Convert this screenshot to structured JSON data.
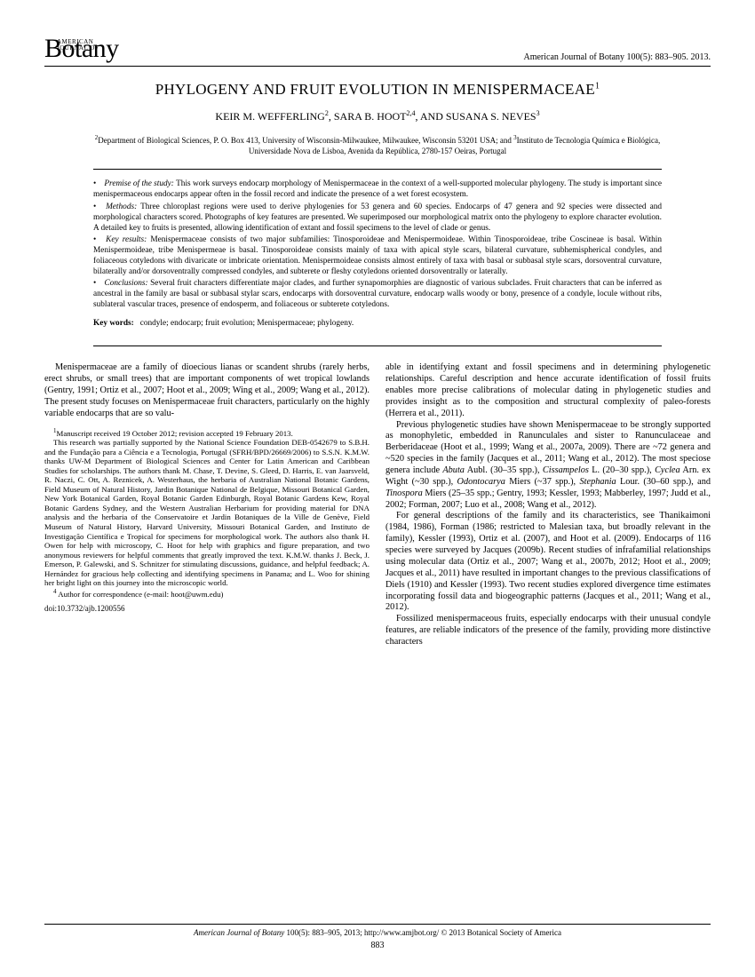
{
  "journal": {
    "logo_main": "Botany",
    "logo_super": "AMERICAN JOURNAL OF",
    "header_citation": "American Journal of Botany 100(5): 883–905. 2013."
  },
  "article": {
    "title": "PHYLOGENY AND FRUIT EVOLUTION IN MENISPERMACEAE",
    "title_footnote": "1",
    "authors_html": "KEIR M. WEFFERLING<sup>2</sup>, SARA B. HOOT<sup>2,4</sup>, AND SUSANA S. NEVES<sup>3</sup>",
    "affiliations_html": "<sup>2</sup>Department of Biological Sciences, P. O. Box 413, University of Wisconsin-Milwaukee, Milwaukee, Wisconsin 53201 USA; and <sup>3</sup>Instituto de Tecnologia Química e Biológica, Universidade Nova de Lisboa, Avenida da República, 2780-157 Oeiras, Portugal"
  },
  "abstract": {
    "items": [
      {
        "label": "Premise of the study:",
        "text": "This work surveys endocarp morphology of Menispermaceae in the context of a well-supported molecular phylogeny. The study is important since menispermaceous endocarps appear often in the fossil record and indicate the presence of a wet forest ecosystem."
      },
      {
        "label": "Methods:",
        "text": "Three chloroplast regions were used to derive phylogenies for 53 genera and 60 species. Endocarps of 47 genera and 92 species were dissected and morphological characters scored. Photographs of key features are presented. We superimposed our morphological matrix onto the phylogeny to explore character evolution. A detailed key to fruits is presented, allowing identification of extant and fossil specimens to the level of clade or genus."
      },
      {
        "label": "Key results:",
        "text": "Menispermaceae consists of two major subfamilies: Tinosporoideae and Menispermoideae. Within Tinosporoideae, tribe Coscineae is basal. Within Menispermoideae, tribe Menispermeae is basal. Tinosporoideae consists mainly of taxa with apical style scars, bilateral curvature, subhemispherical condyles, and foliaceous cotyledons with divaricate or imbricate orientation. Menispermoideae consists almost entirely of taxa with basal or subbasal style scars, dorsoventral curvature, bilaterally and/or dorsoventrally compressed condyles, and subterete or fleshy cotyledons oriented dorsoventrally or laterally."
      },
      {
        "label": "Conclusions:",
        "text": "Several fruit characters differentiate major clades, and further synapomorphies are diagnostic of various subclades. Fruit characters that can be inferred as ancestral in the family are basal or subbasal stylar scars, endocarps with dorsoventral curvature, endocarp walls woody or bony, presence of a condyle, locule without ribs, sublateral vascular traces, presence of endosperm, and foliaceous or subterete cotyledons."
      }
    ]
  },
  "keywords": {
    "label": "Key words:",
    "text": "condyle; endocarp; fruit evolution; Menispermaceae; phylogeny."
  },
  "body": {
    "col1_p1": "Menispermaceae are a family of dioecious lianas or scandent shrubs (rarely herbs, erect shrubs, or small trees) that are important components of wet tropical lowlands (Gentry, 1991; Ortiz et al., 2007; Hoot et al., 2009; Wing et al., 2009; Wang et al., 2012). The present study focuses on Menispermaceae fruit characters, particularly on the highly variable endocarps that are so valu-",
    "col2_p1": "able in identifying extant and fossil specimens and in determining phylogenetic relationships. Careful description and hence accurate identification of fossil fruits enables more precise calibrations of molecular dating in phylogenetic studies and provides insight as to the composition and structural complexity of paleo-forests (Herrera et al., 2011).",
    "col2_p2_html": "Previous phylogenetic studies have shown Menispermaceae to be strongly supported as monophyletic, embedded in Ranunculales and sister to Ranunculaceae and Berberidaceae (Hoot et al., 1999; Wang et al., 2007a, 2009). There are ~72 genera and ~520 species in the family (Jacques et al., 2011; Wang et al., 2012). The most speciose genera include <i>Abuta</i> Aubl. (30–35 spp.), <i>Cissampelos</i> L. (20–30 spp.), <i>Cyclea</i> Arn. ex Wight (~30 spp.), <i>Odontocarya</i> Miers (~37 spp.), <i>Stephania</i> Lour. (30–60 spp.), and <i>Tinospora</i> Miers (25–35 spp.; Gentry, 1993; Kessler, 1993; Mabberley, 1997; Judd et al., 2002; Forman, 2007; Luo et al., 2008; Wang et al., 2012).",
    "col2_p3": "For general descriptions of the family and its characteristics, see Thanikaimoni (1984, 1986), Forman (1986; restricted to Malesian taxa, but broadly relevant in the family), Kessler (1993), Ortiz et al. (2007), and Hoot et al. (2009). Endocarps of 116 species were surveyed by Jacques (2009b). Recent studies of infrafamilial relationships using molecular data (Ortiz et al., 2007; Wang et al., 2007b, 2012; Hoot et al., 2009; Jacques et al., 2011) have resulted in important changes to the previous classifications of Diels (1910) and Kessler (1993). Two recent studies explored divergence time estimates incorporating fossil data and biogeographic patterns (Jacques et al., 2011; Wang et al., 2012).",
    "col2_p4": "Fossilized menispermaceous fruits, especially endocarps with their unusual condyle features, are reliable indicators of the presence of the family, providing more distinctive characters"
  },
  "footnotes": {
    "fn1_html": "<sup>1</sup>Manuscript received 19 October 2012; revision accepted 19 February 2013.",
    "fn_ack": "This research was partially supported by the National Science Foundation DEB-0542679 to S.B.H. and the Fundação para a Ciência e a Tecnologia, Portugal (SFRH/BPD/26669/2006) to S.S.N. K.M.W. thanks UW-M Department of Biological Sciences and Center for Latin American and Caribbean Studies for scholarships. The authors thank M. Chase, T. Devine, S. Gleed, D. Harris, E. van Jaarsveld, R. Naczi, C. Ott, A. Reznicek, A. Westerhaus, the herbaria of Australian National Botanic Gardens, Field Museum of Natural History, Jardin Botanique National de Belgique, Missouri Botanical Garden, New York Botanical Garden, Royal Botanic Garden Edinburgh, Royal Botanic Gardens Kew, Royal Botanic Gardens Sydney, and the Western Australian Herbarium for providing material for DNA analysis and the herbaria of the Conservatoire et Jardin Botaniques de la Ville de Genève, Field Museum of Natural History, Harvard University, Missouri Botanical Garden, and Instituto de Investigação Científica e Tropical for specimens for morphological work. The authors also thank H. Owen for help with microscopy, C. Hoot for help with graphics and figure preparation, and two anonymous reviewers for helpful comments that greatly improved the text. K.M.W. thanks J. Beck, J. Emerson, P. Galewski, and S. Schnitzer for stimulating discussions, guidance, and helpful feedback; A. Hernández for gracious help collecting and identifying specimens in Panama; and L. Woo for shining her bright light on this journey into the microscopic world.",
    "fn4_html": "<sup>4</sup> Author for correspondence (e-mail: hoot@uwm.edu)",
    "doi": "doi:10.3732/ajb.1200556"
  },
  "footer": {
    "text_html": "<i>American Journal of Botany</i> 100(5): 883–905, 2013; http://www.amjbot.org/ © 2013 Botanical Society of America",
    "page": "883"
  }
}
